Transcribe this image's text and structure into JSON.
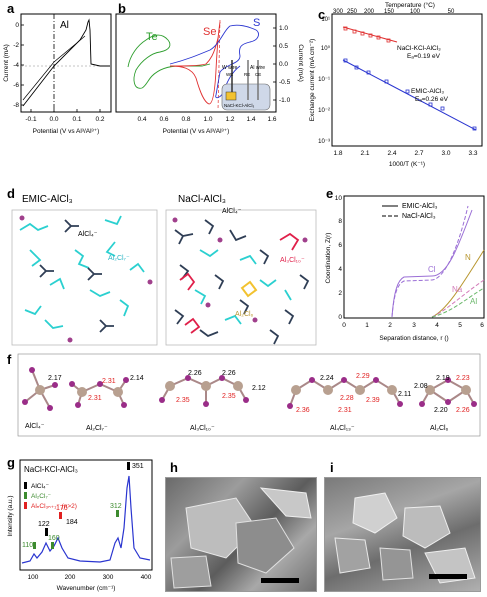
{
  "panels": {
    "a": {
      "label": "a",
      "element_label": "Al",
      "xlabel": "Potential (V vs Al³/Al³⁺)",
      "ylabel": "Current (mA)",
      "xticks": [
        "-0.1",
        "0.0",
        "0.1",
        "0.2"
      ],
      "yticks": [
        "0",
        "-2",
        "-4",
        "-6",
        "-8"
      ]
    },
    "b": {
      "label": "b",
      "species": [
        "Te",
        "Se",
        "S"
      ],
      "species_colors": [
        "#2e9e2e",
        "#e03030",
        "#2a35d0"
      ],
      "xlabel": "Potential (V vs Al³/Al³⁺)",
      "ylabel": "Current (mA)",
      "xticks": [
        "0.4",
        "0.6",
        "0.8",
        "1.0",
        "1.2",
        "1.4",
        "1.6"
      ],
      "yticks": [
        "1.0",
        "0.5",
        "0.0",
        "-0.5",
        "-1.0"
      ],
      "inset": {
        "w_wire": "W wire",
        "al_wire": "Al wire",
        "we": "WE",
        "re": "RE",
        "ce": "CE",
        "liquid": "NaCl-KCl-AlCl₃"
      }
    },
    "c": {
      "label": "c",
      "top_axis_label": "Temperature (°C)",
      "top_ticks": [
        "300",
        "250",
        "200",
        "150",
        "100",
        "50"
      ],
      "xlabel": "1000/T (K⁻¹)",
      "ylabel": "Exchange current (mA cm⁻²)",
      "xticks": [
        "1.8",
        "2.1",
        "2.4",
        "2.7",
        "3.0",
        "3.3"
      ],
      "yticks": [
        "10⁻³",
        "10⁻²",
        "10⁻¹",
        "10⁰",
        "10¹"
      ],
      "annot_nacl": "NaCl-KCl-AlCl₃",
      "annot_nacl_ea": "Eₐ=0.19 eV",
      "annot_emic": "EMIC-AlCl₃",
      "annot_emic_ea": "Eₐ=0.26 eV"
    },
    "d": {
      "label": "d",
      "left_title": "EMIC-AlCl₃",
      "right_title": "NaCl-AlCl₃",
      "alcl4": "AlCl₄⁻",
      "al2cl7": "Al₂Cl₇⁻",
      "al3cl10": "Al₃Cl₁₀⁻",
      "al2cl6": "Al₂Cl₆"
    },
    "e": {
      "label": "e",
      "legend": [
        "EMIC-AlCl₃",
        "NaCl-AlCl₃"
      ],
      "xlabel": "Separation distance, r ()",
      "ylabel": "Coordination, Z(r)",
      "xticks": [
        "0",
        "1",
        "2",
        "3",
        "4",
        "5",
        "6"
      ],
      "yticks": [
        "0",
        "2",
        "4",
        "6",
        "8",
        "10"
      ],
      "curve_labels": [
        "Cl",
        "N",
        "Na",
        "Al"
      ],
      "curve_colors": [
        "#9b6fd6",
        "#b8962e",
        "#d27ab8",
        "#6bb86b"
      ]
    },
    "f": {
      "label": "f",
      "molecules": [
        {
          "name": "AlCl₄⁻",
          "bonds": [
            "2.17"
          ]
        },
        {
          "name": "Al₂Cl₇⁻",
          "bonds": [
            "2.31",
            "2.31",
            "2.14"
          ]
        },
        {
          "name": "Al₃Cl₁₀⁻",
          "bonds": [
            "2.26",
            "2.35",
            "2.35",
            "2.26",
            "2.12"
          ]
        },
        {
          "name": "Al₄Cl₁₃⁻",
          "bonds": [
            "2.36",
            "2.24",
            "2.28",
            "2.39",
            "2.31",
            "2.29",
            "2.11"
          ]
        },
        {
          "name": "Al₂Cl₆",
          "bonds": [
            "2.08",
            "2.19",
            "2.23",
            "2.20",
            "2.26"
          ]
        }
      ]
    },
    "g": {
      "label": "g",
      "title": "NaCl-KCl-AlCl₃",
      "legend": [
        "AlCl₄⁻",
        "Al₂Cl₇⁻",
        "AlₙCl₃ₙ₊₁⁻ (n>2)"
      ],
      "legend_colors": [
        "#000000",
        "#3c8a2e",
        "#e02020"
      ],
      "peaks": [
        "122",
        "176",
        "184",
        "312",
        "351",
        "110",
        "160"
      ],
      "xlabel": "Wavenumber (cm⁻¹)",
      "ylabel": "Intensity (a.u.)",
      "xticks": [
        "100",
        "200",
        "300",
        "400"
      ]
    },
    "h": {
      "label": "h"
    },
    "i": {
      "label": "i"
    }
  }
}
